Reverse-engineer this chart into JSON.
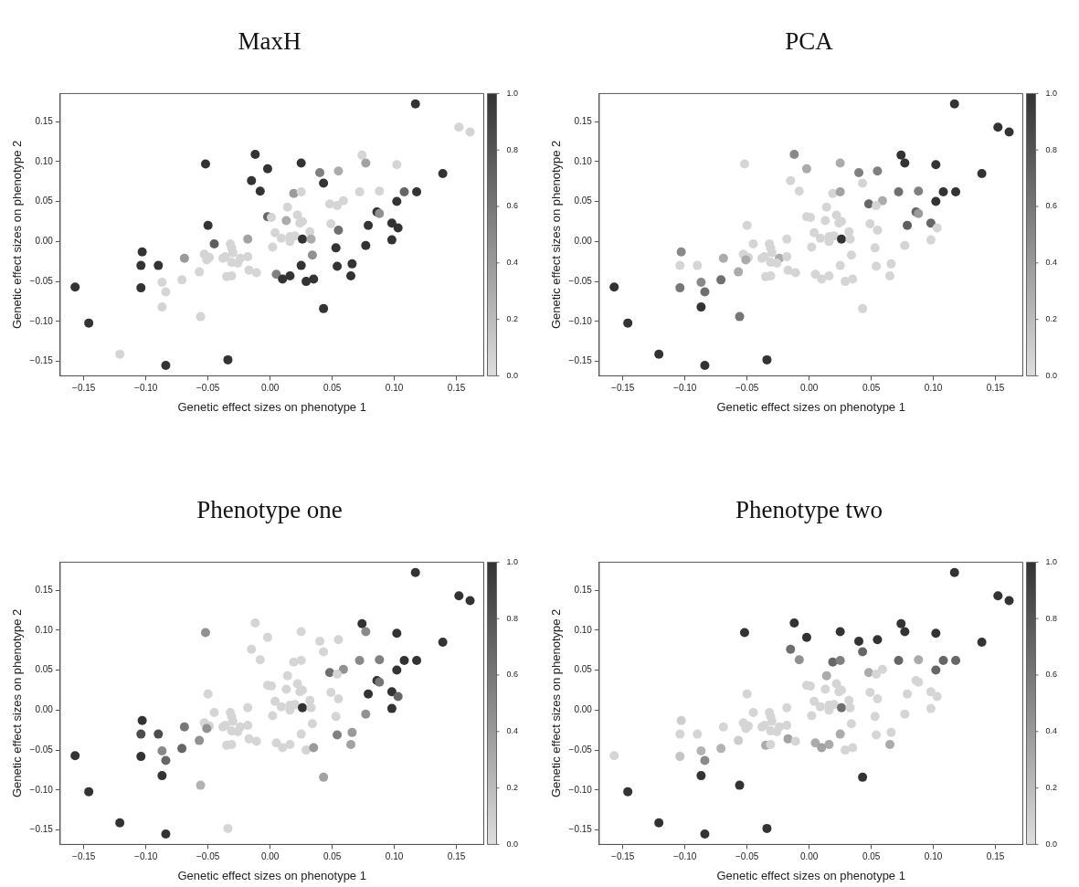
{
  "chart_data": [
    {
      "type": "scatter",
      "title": "MaxH",
      "xlabel": "Genetic effect sizes on phenotype 1",
      "ylabel": "Genetic effect sizes on phenotype 2",
      "xlim": [
        -0.169,
        0.172
      ],
      "ylim": [
        -0.168,
        0.185
      ],
      "xticks": [
        {
          "value": -0.15,
          "label": "−0.15"
        },
        {
          "value": -0.1,
          "label": "−0.10"
        },
        {
          "value": -0.05,
          "label": "−0.05"
        },
        {
          "value": 0,
          "label": "0.00"
        },
        {
          "value": 0.05,
          "label": "0.05"
        },
        {
          "value": 0.1,
          "label": "0.10"
        },
        {
          "value": 0.15,
          "label": "0.15"
        }
      ],
      "yticks": [
        {
          "value": -0.15,
          "label": "−0.15"
        },
        {
          "value": -0.1,
          "label": "−0.10"
        },
        {
          "value": -0.05,
          "label": "−0.05"
        },
        {
          "value": 0,
          "label": "0.00"
        },
        {
          "value": 0.05,
          "label": "0.05"
        },
        {
          "value": 0.1,
          "label": "0.10"
        },
        {
          "value": 0.15,
          "label": "0.15"
        }
      ],
      "clim": [
        0,
        1
      ],
      "cticks": [
        {
          "value": 0,
          "label": "0.0"
        },
        {
          "value": 0.2,
          "label": "0.2"
        },
        {
          "value": 0.4,
          "label": "0.4"
        },
        {
          "value": 0.6,
          "label": "0.6"
        },
        {
          "value": 0.8,
          "label": "0.8"
        },
        {
          "value": 1,
          "label": "1.0"
        }
      ],
      "marker": "circle",
      "x": [
        0.117,
        0.152,
        0.161,
        -0.012,
        -0.052,
        0.025,
        -0.002,
        0.074,
        0.077,
        0.102,
        0.04,
        0.055,
        0.139,
        -0.015,
        0.043,
        -0.008,
        0.019,
        0.025,
        0.072,
        0.088,
        0.108,
        0.118,
        0.102,
        0.059,
        0.048,
        0.054,
        0.014,
        -0.002,
        0.001,
        0.022,
        0.013,
        0.024,
        0.026,
        0.086,
        0.088,
        -0.05,
        0.049,
        0.055,
        0.032,
        0.004,
        0.079,
        0.098,
        0.103,
        -0.018,
        0.009,
        0.016,
        0.02,
        0.016,
        0.026,
        0.033,
        0.098,
        -0.045,
        -0.032,
        -0.031,
        -0.03,
        0.002,
        0.053,
        0.077,
        -0.103,
        -0.053,
        -0.049,
        -0.051,
        -0.069,
        -0.038,
        -0.036,
        -0.024,
        -0.018,
        -0.031,
        -0.026,
        0.034,
        -0.104,
        -0.09,
        0.025,
        0.054,
        0.066,
        -0.017,
        -0.011,
        -0.057,
        -0.035,
        -0.031,
        0.005,
        0.016,
        0.065,
        0.01,
        0.029,
        0.035,
        -0.071,
        -0.104,
        -0.087,
        -0.084,
        -0.157,
        -0.087,
        -0.056,
        0.043,
        -0.146,
        -0.121,
        -0.034,
        -0.084
      ],
      "values": [
        0.172,
        0.143,
        0.137,
        0.109,
        0.097,
        0.098,
        0.091,
        0.108,
        0.098,
        0.096,
        0.086,
        0.088,
        0.085,
        0.076,
        0.073,
        0.063,
        0.06,
        0.062,
        0.062,
        0.063,
        0.062,
        0.062,
        0.05,
        0.051,
        0.047,
        0.045,
        0.043,
        0.031,
        0.03,
        0.033,
        0.026,
        0.023,
        0.025,
        0.037,
        0.035,
        0.02,
        0.022,
        0.014,
        0.012,
        0.011,
        0.02,
        0.023,
        0.017,
        0.003,
        0.004,
        0.006,
        0.007,
        0.0,
        0.003,
        0.003,
        0.002,
        -0.003,
        -0.003,
        -0.008,
        -0.014,
        -0.007,
        -0.008,
        -0.005,
        -0.013,
        -0.016,
        -0.02,
        -0.023,
        -0.021,
        -0.021,
        -0.019,
        -0.021,
        -0.019,
        -0.026,
        -0.027,
        -0.017,
        -0.03,
        -0.03,
        -0.03,
        -0.031,
        -0.028,
        -0.036,
        -0.039,
        -0.038,
        -0.044,
        -0.043,
        -0.041,
        -0.043,
        -0.043,
        -0.047,
        -0.05,
        -0.047,
        -0.048,
        -0.058,
        -0.051,
        -0.063,
        -0.057,
        -0.082,
        -0.094,
        -0.084,
        -0.102,
        -0.141,
        -0.148,
        -0.155
      ],
      "cvalues": [
        1,
        0.05,
        0.05,
        1,
        1,
        1,
        1,
        0.05,
        0.35,
        0.05,
        0.55,
        0.3,
        1,
        1,
        1,
        1,
        0.4,
        0.05,
        0.05,
        0.05,
        0.7,
        1,
        1,
        0.05,
        0.05,
        0.05,
        0.05,
        0.7,
        0.05,
        0.05,
        0.3,
        0.05,
        0.05,
        1,
        0.45,
        1,
        0.05,
        0.65,
        0.05,
        0.05,
        1,
        1,
        1,
        0.35,
        0.05,
        0.05,
        0.05,
        0.05,
        1,
        0.3,
        1,
        0.75,
        0.05,
        0.05,
        0.05,
        0.05,
        1,
        1,
        1,
        0.05,
        0.05,
        0.05,
        0.4,
        0.05,
        0.05,
        0.05,
        0.05,
        0.05,
        0.05,
        0.45,
        1,
        1,
        1,
        1,
        1,
        0.05,
        0.05,
        0.05,
        0.05,
        0.05,
        0.55,
        1,
        1,
        1,
        1,
        1,
        0.05,
        1,
        0.05,
        0.05,
        1,
        0.05,
        0.05,
        1,
        1,
        0.05,
        1,
        1
      ]
    },
    {
      "type": "scatter",
      "title": "PCA",
      "xlabel": "Genetic effect sizes on phenotype 1",
      "ylabel": "Genetic effect sizes on phenotype 2",
      "xlim": [
        -0.169,
        0.172
      ],
      "ylim": [
        -0.168,
        0.185
      ],
      "xticks": [
        {
          "value": -0.15,
          "label": "−0.15"
        },
        {
          "value": -0.1,
          "label": "−0.10"
        },
        {
          "value": -0.05,
          "label": "−0.05"
        },
        {
          "value": 0,
          "label": "0.00"
        },
        {
          "value": 0.05,
          "label": "0.05"
        },
        {
          "value": 0.1,
          "label": "0.10"
        },
        {
          "value": 0.15,
          "label": "0.15"
        }
      ],
      "yticks": [
        {
          "value": -0.15,
          "label": "−0.15"
        },
        {
          "value": -0.1,
          "label": "−0.10"
        },
        {
          "value": -0.05,
          "label": "−0.05"
        },
        {
          "value": 0,
          "label": "0.00"
        },
        {
          "value": 0.05,
          "label": "0.05"
        },
        {
          "value": 0.1,
          "label": "0.10"
        },
        {
          "value": 0.15,
          "label": "0.15"
        }
      ],
      "clim": [
        0,
        1
      ],
      "cticks": [
        {
          "value": 0,
          "label": "0.0"
        },
        {
          "value": 0.2,
          "label": "0.2"
        },
        {
          "value": 0.4,
          "label": "0.4"
        },
        {
          "value": 0.6,
          "label": "0.6"
        },
        {
          "value": 0.8,
          "label": "0.8"
        },
        {
          "value": 1,
          "label": "1.0"
        }
      ],
      "marker": "circle",
      "x": [
        0.117,
        0.152,
        0.161,
        -0.012,
        -0.052,
        0.025,
        -0.002,
        0.074,
        0.077,
        0.102,
        0.04,
        0.055,
        0.139,
        -0.015,
        0.043,
        -0.008,
        0.019,
        0.025,
        0.072,
        0.088,
        0.108,
        0.118,
        0.102,
        0.059,
        0.048,
        0.054,
        0.014,
        -0.002,
        0.001,
        0.022,
        0.013,
        0.024,
        0.026,
        0.086,
        0.088,
        -0.05,
        0.049,
        0.055,
        0.032,
        0.004,
        0.079,
        0.098,
        0.103,
        -0.018,
        0.009,
        0.016,
        0.02,
        0.016,
        0.026,
        0.033,
        0.098,
        -0.045,
        -0.032,
        -0.031,
        -0.03,
        0.002,
        0.053,
        0.077,
        -0.103,
        -0.053,
        -0.049,
        -0.051,
        -0.069,
        -0.038,
        -0.036,
        -0.024,
        -0.018,
        -0.031,
        -0.026,
        0.034,
        -0.104,
        -0.09,
        0.025,
        0.054,
        0.066,
        -0.017,
        -0.011,
        -0.057,
        -0.035,
        -0.031,
        0.005,
        0.016,
        0.065,
        0.01,
        0.029,
        0.035,
        -0.071,
        -0.104,
        -0.087,
        -0.084,
        -0.157,
        -0.087,
        -0.056,
        0.043,
        -0.146,
        -0.121,
        -0.034,
        -0.084
      ],
      "values": [
        0.172,
        0.143,
        0.137,
        0.109,
        0.097,
        0.098,
        0.091,
        0.108,
        0.098,
        0.096,
        0.086,
        0.088,
        0.085,
        0.076,
        0.073,
        0.063,
        0.06,
        0.062,
        0.062,
        0.063,
        0.062,
        0.062,
        0.05,
        0.051,
        0.047,
        0.045,
        0.043,
        0.031,
        0.03,
        0.033,
        0.026,
        0.023,
        0.025,
        0.037,
        0.035,
        0.02,
        0.022,
        0.014,
        0.012,
        0.011,
        0.02,
        0.023,
        0.017,
        0.003,
        0.004,
        0.006,
        0.007,
        0.0,
        0.003,
        0.003,
        0.002,
        -0.003,
        -0.003,
        -0.008,
        -0.014,
        -0.007,
        -0.008,
        -0.005,
        -0.013,
        -0.016,
        -0.02,
        -0.023,
        -0.021,
        -0.021,
        -0.019,
        -0.021,
        -0.019,
        -0.026,
        -0.027,
        -0.017,
        -0.03,
        -0.03,
        -0.03,
        -0.031,
        -0.028,
        -0.036,
        -0.039,
        -0.038,
        -0.044,
        -0.043,
        -0.041,
        -0.043,
        -0.043,
        -0.047,
        -0.05,
        -0.047,
        -0.048,
        -0.058,
        -0.051,
        -0.063,
        -0.057,
        -0.082,
        -0.094,
        -0.084,
        -0.102,
        -0.141,
        -0.148,
        -0.155
      ],
      "cvalues": [
        1,
        1,
        1,
        0.5,
        0.05,
        0.3,
        0.3,
        1,
        1,
        1,
        0.55,
        0.55,
        1,
        0.05,
        0.05,
        0.05,
        0.05,
        0.35,
        0.65,
        0.55,
        1,
        1,
        1,
        0.3,
        0.7,
        0.05,
        0.05,
        0.05,
        0.05,
        0.05,
        0.05,
        0.05,
        0.05,
        0.7,
        0.4,
        0.05,
        0.05,
        0.05,
        0.05,
        0.05,
        0.75,
        0.7,
        0.05,
        0.05,
        0.05,
        0.05,
        0.05,
        0.05,
        1,
        0.05,
        0.05,
        0.05,
        0.05,
        0.05,
        0.05,
        0.05,
        0.05,
        0.05,
        0.5,
        0.05,
        0.05,
        0.3,
        0.3,
        0.05,
        0.05,
        0.3,
        0.05,
        0.05,
        0.05,
        0.05,
        0.05,
        0.05,
        0.05,
        0.05,
        0.05,
        0.05,
        0.05,
        0.3,
        0.05,
        0.05,
        0.05,
        0.05,
        0.05,
        0.05,
        0.05,
        0.05,
        0.65,
        0.6,
        0.5,
        0.65,
        1,
        1,
        0.6,
        0.05,
        1,
        1,
        1,
        1
      ]
    },
    {
      "type": "scatter",
      "title": "Phenotype one",
      "xlabel": "Genetic effect sizes on phenotype 1",
      "ylabel": "Genetic effect sizes on phenotype 2",
      "xlim": [
        -0.169,
        0.172
      ],
      "ylim": [
        -0.168,
        0.185
      ],
      "xticks": [
        {
          "value": -0.15,
          "label": "−0.15"
        },
        {
          "value": -0.1,
          "label": "−0.10"
        },
        {
          "value": -0.05,
          "label": "−0.05"
        },
        {
          "value": 0,
          "label": "0.00"
        },
        {
          "value": 0.05,
          "label": "0.05"
        },
        {
          "value": 0.1,
          "label": "0.10"
        },
        {
          "value": 0.15,
          "label": "0.15"
        }
      ],
      "yticks": [
        {
          "value": -0.15,
          "label": "−0.15"
        },
        {
          "value": -0.1,
          "label": "−0.10"
        },
        {
          "value": -0.05,
          "label": "−0.05"
        },
        {
          "value": 0,
          "label": "0.00"
        },
        {
          "value": 0.05,
          "label": "0.05"
        },
        {
          "value": 0.1,
          "label": "0.10"
        },
        {
          "value": 0.15,
          "label": "0.15"
        }
      ],
      "clim": [
        0,
        1
      ],
      "cticks": [
        {
          "value": 0,
          "label": "0.0"
        },
        {
          "value": 0.2,
          "label": "0.2"
        },
        {
          "value": 0.4,
          "label": "0.4"
        },
        {
          "value": 0.6,
          "label": "0.6"
        },
        {
          "value": 0.8,
          "label": "0.8"
        },
        {
          "value": 1,
          "label": "1.0"
        }
      ],
      "marker": "circle",
      "x": [
        0.117,
        0.152,
        0.161,
        -0.012,
        -0.052,
        0.025,
        -0.002,
        0.074,
        0.077,
        0.102,
        0.04,
        0.055,
        0.139,
        -0.015,
        0.043,
        -0.008,
        0.019,
        0.025,
        0.072,
        0.088,
        0.108,
        0.118,
        0.102,
        0.059,
        0.048,
        0.054,
        0.014,
        -0.002,
        0.001,
        0.022,
        0.013,
        0.024,
        0.026,
        0.086,
        0.088,
        -0.05,
        0.049,
        0.055,
        0.032,
        0.004,
        0.079,
        0.098,
        0.103,
        -0.018,
        0.009,
        0.016,
        0.02,
        0.016,
        0.026,
        0.033,
        0.098,
        -0.045,
        -0.032,
        -0.031,
        -0.03,
        0.002,
        0.053,
        0.077,
        -0.103,
        -0.053,
        -0.049,
        -0.051,
        -0.069,
        -0.038,
        -0.036,
        -0.024,
        -0.018,
        -0.031,
        -0.026,
        0.034,
        -0.104,
        -0.09,
        0.025,
        0.054,
        0.066,
        -0.017,
        -0.011,
        -0.057,
        -0.035,
        -0.031,
        0.005,
        0.016,
        0.065,
        0.01,
        0.029,
        0.035,
        -0.071,
        -0.104,
        -0.087,
        -0.084,
        -0.157,
        -0.087,
        -0.056,
        0.043,
        -0.146,
        -0.121,
        -0.034,
        -0.084
      ],
      "values": [
        0.172,
        0.143,
        0.137,
        0.109,
        0.097,
        0.098,
        0.091,
        0.108,
        0.098,
        0.096,
        0.086,
        0.088,
        0.085,
        0.076,
        0.073,
        0.063,
        0.06,
        0.062,
        0.062,
        0.063,
        0.062,
        0.062,
        0.05,
        0.051,
        0.047,
        0.045,
        0.043,
        0.031,
        0.03,
        0.033,
        0.026,
        0.023,
        0.025,
        0.037,
        0.035,
        0.02,
        0.022,
        0.014,
        0.012,
        0.011,
        0.02,
        0.023,
        0.017,
        0.003,
        0.004,
        0.006,
        0.007,
        0.0,
        0.003,
        0.003,
        0.002,
        -0.003,
        -0.003,
        -0.008,
        -0.014,
        -0.007,
        -0.008,
        -0.005,
        -0.013,
        -0.016,
        -0.02,
        -0.023,
        -0.021,
        -0.021,
        -0.019,
        -0.021,
        -0.019,
        -0.026,
        -0.027,
        -0.017,
        -0.03,
        -0.03,
        -0.03,
        -0.031,
        -0.028,
        -0.036,
        -0.039,
        -0.038,
        -0.044,
        -0.043,
        -0.041,
        -0.043,
        -0.043,
        -0.047,
        -0.05,
        -0.047,
        -0.048,
        -0.058,
        -0.051,
        -0.063,
        -0.057,
        -0.082,
        -0.094,
        -0.084,
        -0.102,
        -0.141,
        -0.148,
        -0.155
      ],
      "cvalues": [
        1,
        1,
        1,
        0.05,
        0.45,
        0.05,
        0.05,
        1,
        0.5,
        1,
        0.05,
        0.05,
        1,
        0.05,
        0.05,
        0.05,
        0.05,
        0.05,
        0.5,
        0.55,
        1,
        1,
        1,
        0.45,
        0.65,
        0.05,
        0.05,
        0.05,
        0.05,
        0.05,
        0.05,
        0.05,
        0.05,
        1,
        0.6,
        0.05,
        0.05,
        0.05,
        0.05,
        0.05,
        1,
        1,
        0.7,
        0.05,
        0.05,
        0.05,
        0.05,
        0.05,
        1,
        0.05,
        1,
        0.05,
        0.05,
        0.05,
        0.05,
        0.05,
        0.05,
        0.45,
        1,
        0.05,
        0.05,
        0.45,
        0.6,
        0.05,
        0.05,
        0.05,
        0.05,
        0.05,
        0.05,
        0.05,
        0.85,
        0.85,
        0.05,
        0.55,
        0.4,
        0.05,
        0.05,
        0.45,
        0.05,
        0.05,
        0.05,
        0.05,
        0.35,
        0.05,
        0.05,
        0.4,
        0.7,
        1,
        0.5,
        0.7,
        1,
        1,
        0.25,
        0.35,
        1,
        1,
        0.05,
        1
      ]
    },
    {
      "type": "scatter",
      "title": "Phenotype two",
      "xlabel": "Genetic effect sizes on phenotype 1",
      "ylabel": "Genetic effect sizes on phenotype 2",
      "xlim": [
        -0.169,
        0.172
      ],
      "ylim": [
        -0.168,
        0.185
      ],
      "xticks": [
        {
          "value": -0.15,
          "label": "−0.15"
        },
        {
          "value": -0.1,
          "label": "−0.10"
        },
        {
          "value": -0.05,
          "label": "−0.05"
        },
        {
          "value": 0,
          "label": "0.00"
        },
        {
          "value": 0.05,
          "label": "0.05"
        },
        {
          "value": 0.1,
          "label": "0.10"
        },
        {
          "value": 0.15,
          "label": "0.15"
        }
      ],
      "yticks": [
        {
          "value": -0.15,
          "label": "−0.15"
        },
        {
          "value": -0.1,
          "label": "−0.10"
        },
        {
          "value": -0.05,
          "label": "−0.05"
        },
        {
          "value": 0,
          "label": "0.00"
        },
        {
          "value": 0.05,
          "label": "0.05"
        },
        {
          "value": 0.1,
          "label": "0.10"
        },
        {
          "value": 0.15,
          "label": "0.15"
        }
      ],
      "clim": [
        0,
        1
      ],
      "cticks": [
        {
          "value": 0,
          "label": "0.0"
        },
        {
          "value": 0.2,
          "label": "0.2"
        },
        {
          "value": 0.4,
          "label": "0.4"
        },
        {
          "value": 0.6,
          "label": "0.6"
        },
        {
          "value": 0.8,
          "label": "0.8"
        },
        {
          "value": 1,
          "label": "1.0"
        }
      ],
      "marker": "circle",
      "x": [
        0.117,
        0.152,
        0.161,
        -0.012,
        -0.052,
        0.025,
        -0.002,
        0.074,
        0.077,
        0.102,
        0.04,
        0.055,
        0.139,
        -0.015,
        0.043,
        -0.008,
        0.019,
        0.025,
        0.072,
        0.088,
        0.108,
        0.118,
        0.102,
        0.059,
        0.048,
        0.054,
        0.014,
        -0.002,
        0.001,
        0.022,
        0.013,
        0.024,
        0.026,
        0.086,
        0.088,
        -0.05,
        0.049,
        0.055,
        0.032,
        0.004,
        0.079,
        0.098,
        0.103,
        -0.018,
        0.009,
        0.016,
        0.02,
        0.016,
        0.026,
        0.033,
        0.098,
        -0.045,
        -0.032,
        -0.031,
        -0.03,
        0.002,
        0.053,
        0.077,
        -0.103,
        -0.053,
        -0.049,
        -0.051,
        -0.069,
        -0.038,
        -0.036,
        -0.024,
        -0.018,
        -0.031,
        -0.026,
        0.034,
        -0.104,
        -0.09,
        0.025,
        0.054,
        0.066,
        -0.017,
        -0.011,
        -0.057,
        -0.035,
        -0.031,
        0.005,
        0.016,
        0.065,
        0.01,
        0.029,
        0.035,
        -0.071,
        -0.104,
        -0.087,
        -0.084,
        -0.157,
        -0.087,
        -0.056,
        0.043,
        -0.146,
        -0.121,
        -0.034,
        -0.084
      ],
      "values": [
        0.172,
        0.143,
        0.137,
        0.109,
        0.097,
        0.098,
        0.091,
        0.108,
        0.098,
        0.096,
        0.086,
        0.088,
        0.085,
        0.076,
        0.073,
        0.063,
        0.06,
        0.062,
        0.062,
        0.063,
        0.062,
        0.062,
        0.05,
        0.051,
        0.047,
        0.045,
        0.043,
        0.031,
        0.03,
        0.033,
        0.026,
        0.023,
        0.025,
        0.037,
        0.035,
        0.02,
        0.022,
        0.014,
        0.012,
        0.011,
        0.02,
        0.023,
        0.017,
        0.003,
        0.004,
        0.006,
        0.007,
        0.0,
        0.003,
        0.003,
        0.002,
        -0.003,
        -0.003,
        -0.008,
        -0.014,
        -0.007,
        -0.008,
        -0.005,
        -0.013,
        -0.016,
        -0.02,
        -0.023,
        -0.021,
        -0.021,
        -0.019,
        -0.021,
        -0.019,
        -0.026,
        -0.027,
        -0.017,
        -0.03,
        -0.03,
        -0.03,
        -0.031,
        -0.028,
        -0.036,
        -0.039,
        -0.038,
        -0.044,
        -0.043,
        -0.041,
        -0.043,
        -0.043,
        -0.047,
        -0.05,
        -0.047,
        -0.048,
        -0.058,
        -0.051,
        -0.063,
        -0.057,
        -0.082,
        -0.094,
        -0.084,
        -0.102,
        -0.141,
        -0.148,
        -0.155
      ],
      "cvalues": [
        1,
        1,
        1,
        1,
        1,
        1,
        1,
        1,
        1,
        1,
        1,
        1,
        1,
        0.65,
        0.7,
        0.45,
        0.7,
        0.55,
        0.7,
        0.3,
        0.7,
        0.7,
        0.7,
        0.05,
        0.3,
        0.05,
        0.3,
        0.05,
        0.05,
        0.05,
        0.05,
        0.05,
        0.05,
        0.05,
        0.05,
        0.05,
        0.05,
        0.05,
        0.05,
        0.05,
        0.05,
        0.05,
        0.05,
        0.05,
        0.05,
        0.05,
        0.05,
        0.05,
        0.65,
        0.05,
        0.05,
        0.05,
        0.05,
        0.05,
        0.05,
        0.05,
        0.05,
        0.05,
        0.1,
        0.05,
        0.05,
        0.05,
        0.05,
        0.05,
        0.05,
        0.05,
        0.05,
        0.05,
        0.05,
        0.05,
        0.05,
        0.05,
        0.3,
        0.05,
        0.05,
        0.35,
        0.05,
        0.1,
        0.3,
        0.05,
        0.3,
        0.3,
        0.3,
        0.35,
        0.05,
        0.05,
        0.25,
        0.15,
        0.25,
        0.5,
        0.05,
        1,
        1,
        1,
        1,
        1,
        1,
        1
      ]
    }
  ]
}
